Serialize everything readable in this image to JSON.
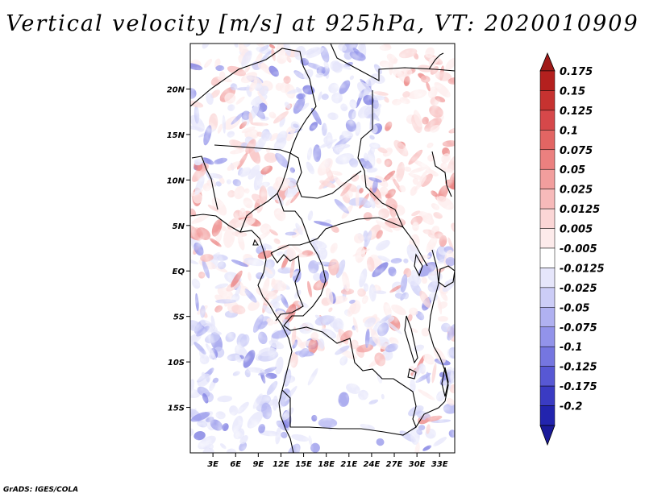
{
  "chart_data": {
    "type": "heatmap",
    "title": "Vertical velocity [m/s] at 925hPa, VT: 2020010909",
    "variable": "Vertical velocity",
    "units": "m/s",
    "level": "925hPa",
    "valid_time": "2020010909",
    "x_axis": {
      "range": [
        0,
        35
      ],
      "ticks": [
        {
          "value": 3,
          "label": "3E"
        },
        {
          "value": 6,
          "label": "6E"
        },
        {
          "value": 9,
          "label": "9E"
        },
        {
          "value": 12,
          "label": "12E"
        },
        {
          "value": 15,
          "label": "15E"
        },
        {
          "value": 18,
          "label": "18E"
        },
        {
          "value": 21,
          "label": "21E"
        },
        {
          "value": 24,
          "label": "24E"
        },
        {
          "value": 27,
          "label": "27E"
        },
        {
          "value": 30,
          "label": "30E"
        },
        {
          "value": 33,
          "label": "33E"
        }
      ]
    },
    "y_axis": {
      "range": [
        -20,
        25
      ],
      "ticks": [
        {
          "value": 20,
          "label": "20N"
        },
        {
          "value": 15,
          "label": "15N"
        },
        {
          "value": 10,
          "label": "10N"
        },
        {
          "value": 5,
          "label": "5N"
        },
        {
          "value": 0,
          "label": "EQ"
        },
        {
          "value": -5,
          "label": "5S"
        },
        {
          "value": -10,
          "label": "10S"
        },
        {
          "value": -15,
          "label": "15S"
        }
      ]
    },
    "colorbar": {
      "levels": [
        {
          "label": "0.175",
          "color": "#b4201e"
        },
        {
          "label": "0.15",
          "color": "#c63230"
        },
        {
          "label": "0.125",
          "color": "#d6484a"
        },
        {
          "label": "0.1",
          "color": "#e26563"
        },
        {
          "label": "0.075",
          "color": "#eb807f"
        },
        {
          "label": "0.05",
          "color": "#f29e9d"
        },
        {
          "label": "0.025",
          "color": "#f7baba"
        },
        {
          "label": "0.0125",
          "color": "#fbd6d6"
        },
        {
          "label": "0.005",
          "color": "#fdebeb"
        },
        {
          "label": "-0.005",
          "color": "#ffffff"
        },
        {
          "label": "-0.0125",
          "color": "#e6e6fb"
        },
        {
          "label": "-0.025",
          "color": "#cccdf7"
        },
        {
          "label": "-0.05",
          "color": "#b0b1f1"
        },
        {
          "label": "-0.075",
          "color": "#9293ea"
        },
        {
          "label": "-0.1",
          "color": "#7576e0"
        },
        {
          "label": "-0.125",
          "color": "#5758d4"
        },
        {
          "label": "-0.175",
          "color": "#3a3bc3"
        },
        {
          "label": "-0.2",
          "color": "#2224ae"
        }
      ],
      "top_extend_color": "#a01a18",
      "bottom_extend_color": "#1a1a9a"
    }
  },
  "footer": {
    "credit": "GrADS: IGES/COLA"
  }
}
